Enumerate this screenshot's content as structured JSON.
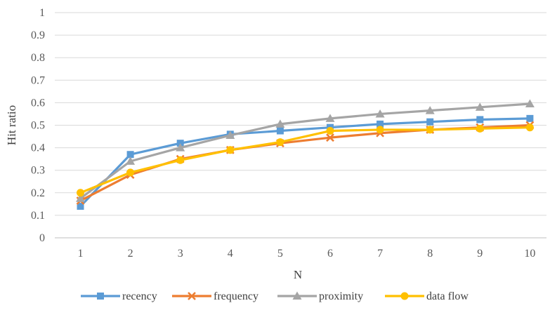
{
  "chart_data": {
    "type": "line",
    "title": "",
    "xlabel": "N",
    "ylabel": "Hit ratio",
    "x": [
      1,
      2,
      3,
      4,
      5,
      6,
      7,
      8,
      9,
      10
    ],
    "x_tick_labels": [
      "1",
      "2",
      "3",
      "4",
      "5",
      "6",
      "7",
      "8",
      "9",
      "10"
    ],
    "ylim": [
      0,
      1
    ],
    "y_ticks": [
      0,
      0.1,
      0.2,
      0.3,
      0.4,
      0.5,
      0.6,
      0.7,
      0.8,
      0.9,
      1
    ],
    "y_tick_labels": [
      "0",
      "0.1",
      "0.2",
      "0.3",
      "0.4",
      "0.5",
      "0.6",
      "0.7",
      "0.8",
      "0.9",
      "1"
    ],
    "grid": true,
    "legend_position": "bottom",
    "series": [
      {
        "name": "recency",
        "color": "#5B9BD5",
        "marker": "square",
        "values": [
          0.14,
          0.37,
          0.42,
          0.46,
          0.475,
          0.49,
          0.505,
          0.515,
          0.525,
          0.53
        ]
      },
      {
        "name": "frequency",
        "color": "#ED7D31",
        "marker": "x",
        "values": [
          0.165,
          0.28,
          0.35,
          0.39,
          0.42,
          0.445,
          0.465,
          0.48,
          0.49,
          0.5
        ]
      },
      {
        "name": "proximity",
        "color": "#A5A5A5",
        "marker": "triangle",
        "values": [
          0.175,
          0.34,
          0.4,
          0.455,
          0.505,
          0.53,
          0.55,
          0.565,
          0.58,
          0.595
        ]
      },
      {
        "name": "data flow",
        "color": "#FFC000",
        "marker": "circle",
        "values": [
          0.2,
          0.29,
          0.345,
          0.39,
          0.425,
          0.475,
          0.48,
          0.48,
          0.485,
          0.49
        ]
      }
    ]
  }
}
